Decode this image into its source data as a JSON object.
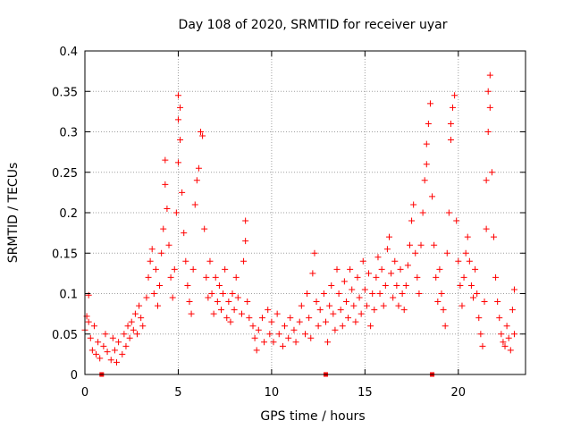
{
  "chart_data": {
    "type": "scatter",
    "title": "Day 108 of 2020, SRMTID for receiver uyar",
    "xlabel": "GPS time / hours",
    "ylabel": "SRMTID / TECUs",
    "xlim": [
      0,
      23.6
    ],
    "ylim": [
      0,
      0.4
    ],
    "x_ticks": [
      0,
      5,
      10,
      15,
      20
    ],
    "x_tick_labels": [
      "0",
      "5",
      "10",
      "15",
      "20"
    ],
    "y_ticks": [
      0,
      0.05,
      0.1,
      0.15,
      0.2,
      0.25,
      0.3,
      0.35,
      0.4
    ],
    "y_tick_labels": [
      "0",
      "0.05",
      "0.1",
      "0.15",
      "0.2",
      "0.25",
      "0.3",
      "0.35",
      "0.4"
    ],
    "grid": true,
    "legend": "none",
    "marker": "plus",
    "color": "#ff0000",
    "axis_markers_x": [
      0.9,
      12.9,
      18.6
    ],
    "series": [
      {
        "name": "SRMTID",
        "points": [
          [
            0.0,
            0.055
          ],
          [
            0.1,
            0.072
          ],
          [
            0.2,
            0.098
          ],
          [
            0.2,
            0.065
          ],
          [
            0.3,
            0.045
          ],
          [
            0.4,
            0.03
          ],
          [
            0.5,
            0.06
          ],
          [
            0.6,
            0.025
          ],
          [
            0.7,
            0.04
          ],
          [
            0.8,
            0.02
          ],
          [
            1.0,
            0.035
          ],
          [
            1.1,
            0.05
          ],
          [
            1.2,
            0.028
          ],
          [
            1.4,
            0.018
          ],
          [
            1.5,
            0.045
          ],
          [
            1.6,
            0.03
          ],
          [
            1.7,
            0.015
          ],
          [
            1.8,
            0.04
          ],
          [
            2.0,
            0.025
          ],
          [
            2.1,
            0.05
          ],
          [
            2.2,
            0.035
          ],
          [
            2.3,
            0.06
          ],
          [
            2.4,
            0.045
          ],
          [
            2.5,
            0.065
          ],
          [
            2.6,
            0.055
          ],
          [
            2.7,
            0.075
          ],
          [
            2.8,
            0.05
          ],
          [
            2.9,
            0.085
          ],
          [
            3.0,
            0.07
          ],
          [
            3.1,
            0.06
          ],
          [
            3.3,
            0.095
          ],
          [
            3.4,
            0.12
          ],
          [
            3.5,
            0.14
          ],
          [
            3.6,
            0.155
          ],
          [
            3.7,
            0.1
          ],
          [
            3.8,
            0.13
          ],
          [
            3.9,
            0.085
          ],
          [
            4.0,
            0.11
          ],
          [
            4.1,
            0.15
          ],
          [
            4.2,
            0.18
          ],
          [
            4.3,
            0.235
          ],
          [
            4.3,
            0.265
          ],
          [
            4.4,
            0.205
          ],
          [
            4.5,
            0.16
          ],
          [
            4.6,
            0.12
          ],
          [
            4.7,
            0.095
          ],
          [
            4.8,
            0.13
          ],
          [
            4.9,
            0.2
          ],
          [
            5.0,
            0.262
          ],
          [
            5.0,
            0.315
          ],
          [
            5.0,
            0.345
          ],
          [
            5.1,
            0.33
          ],
          [
            5.1,
            0.29
          ],
          [
            5.2,
            0.225
          ],
          [
            5.3,
            0.175
          ],
          [
            5.4,
            0.14
          ],
          [
            5.5,
            0.11
          ],
          [
            5.6,
            0.09
          ],
          [
            5.7,
            0.075
          ],
          [
            5.8,
            0.13
          ],
          [
            5.9,
            0.21
          ],
          [
            6.0,
            0.24
          ],
          [
            6.1,
            0.255
          ],
          [
            6.2,
            0.3
          ],
          [
            6.3,
            0.295
          ],
          [
            6.4,
            0.18
          ],
          [
            6.5,
            0.12
          ],
          [
            6.6,
            0.095
          ],
          [
            6.7,
            0.14
          ],
          [
            6.8,
            0.1
          ],
          [
            6.9,
            0.075
          ],
          [
            7.0,
            0.12
          ],
          [
            7.1,
            0.09
          ],
          [
            7.2,
            0.11
          ],
          [
            7.3,
            0.08
          ],
          [
            7.4,
            0.1
          ],
          [
            7.5,
            0.13
          ],
          [
            7.6,
            0.07
          ],
          [
            7.7,
            0.09
          ],
          [
            7.8,
            0.065
          ],
          [
            7.9,
            0.1
          ],
          [
            8.0,
            0.08
          ],
          [
            8.1,
            0.12
          ],
          [
            8.2,
            0.095
          ],
          [
            8.4,
            0.075
          ],
          [
            8.5,
            0.14
          ],
          [
            8.6,
            0.165
          ],
          [
            8.6,
            0.19
          ],
          [
            8.7,
            0.09
          ],
          [
            8.8,
            0.07
          ],
          [
            9.0,
            0.06
          ],
          [
            9.1,
            0.045
          ],
          [
            9.2,
            0.03
          ],
          [
            9.3,
            0.055
          ],
          [
            9.5,
            0.07
          ],
          [
            9.6,
            0.04
          ],
          [
            9.8,
            0.08
          ],
          [
            9.9,
            0.05
          ],
          [
            10.0,
            0.065
          ],
          [
            10.1,
            0.04
          ],
          [
            10.3,
            0.075
          ],
          [
            10.4,
            0.05
          ],
          [
            10.6,
            0.035
          ],
          [
            10.7,
            0.06
          ],
          [
            10.9,
            0.045
          ],
          [
            11.0,
            0.07
          ],
          [
            11.2,
            0.055
          ],
          [
            11.3,
            0.04
          ],
          [
            11.5,
            0.065
          ],
          [
            11.6,
            0.085
          ],
          [
            11.8,
            0.05
          ],
          [
            11.9,
            0.1
          ],
          [
            12.0,
            0.07
          ],
          [
            12.1,
            0.045
          ],
          [
            12.2,
            0.125
          ],
          [
            12.3,
            0.15
          ],
          [
            12.4,
            0.09
          ],
          [
            12.5,
            0.06
          ],
          [
            12.6,
            0.08
          ],
          [
            12.8,
            0.1
          ],
          [
            12.9,
            0.065
          ],
          [
            13.0,
            0.04
          ],
          [
            13.1,
            0.085
          ],
          [
            13.2,
            0.11
          ],
          [
            13.3,
            0.075
          ],
          [
            13.4,
            0.055
          ],
          [
            13.5,
            0.13
          ],
          [
            13.6,
            0.1
          ],
          [
            13.7,
            0.08
          ],
          [
            13.8,
            0.06
          ],
          [
            13.9,
            0.115
          ],
          [
            14.0,
            0.09
          ],
          [
            14.1,
            0.07
          ],
          [
            14.2,
            0.13
          ],
          [
            14.3,
            0.105
          ],
          [
            14.4,
            0.085
          ],
          [
            14.5,
            0.065
          ],
          [
            14.6,
            0.12
          ],
          [
            14.7,
            0.095
          ],
          [
            14.8,
            0.075
          ],
          [
            14.9,
            0.14
          ],
          [
            15.0,
            0.105
          ],
          [
            15.1,
            0.085
          ],
          [
            15.2,
            0.125
          ],
          [
            15.3,
            0.06
          ],
          [
            15.4,
            0.1
          ],
          [
            15.5,
            0.08
          ],
          [
            15.6,
            0.12
          ],
          [
            15.7,
            0.145
          ],
          [
            15.8,
            0.1
          ],
          [
            15.9,
            0.13
          ],
          [
            16.0,
            0.085
          ],
          [
            16.1,
            0.11
          ],
          [
            16.2,
            0.155
          ],
          [
            16.3,
            0.17
          ],
          [
            16.4,
            0.125
          ],
          [
            16.5,
            0.095
          ],
          [
            16.6,
            0.14
          ],
          [
            16.7,
            0.11
          ],
          [
            16.8,
            0.085
          ],
          [
            16.9,
            0.13
          ],
          [
            17.0,
            0.1
          ],
          [
            17.1,
            0.08
          ],
          [
            17.2,
            0.11
          ],
          [
            17.3,
            0.135
          ],
          [
            17.4,
            0.16
          ],
          [
            17.5,
            0.19
          ],
          [
            17.6,
            0.21
          ],
          [
            17.7,
            0.15
          ],
          [
            17.8,
            0.12
          ],
          [
            17.9,
            0.1
          ],
          [
            18.0,
            0.16
          ],
          [
            18.1,
            0.2
          ],
          [
            18.2,
            0.24
          ],
          [
            18.3,
            0.26
          ],
          [
            18.3,
            0.285
          ],
          [
            18.4,
            0.31
          ],
          [
            18.5,
            0.335
          ],
          [
            18.6,
            0.22
          ],
          [
            18.7,
            0.16
          ],
          [
            18.8,
            0.12
          ],
          [
            18.9,
            0.09
          ],
          [
            19.0,
            0.13
          ],
          [
            19.1,
            0.1
          ],
          [
            19.2,
            0.08
          ],
          [
            19.3,
            0.06
          ],
          [
            19.4,
            0.15
          ],
          [
            19.5,
            0.2
          ],
          [
            19.6,
            0.29
          ],
          [
            19.6,
            0.31
          ],
          [
            19.7,
            0.33
          ],
          [
            19.8,
            0.345
          ],
          [
            19.9,
            0.19
          ],
          [
            20.0,
            0.14
          ],
          [
            20.1,
            0.11
          ],
          [
            20.2,
            0.085
          ],
          [
            20.3,
            0.12
          ],
          [
            20.4,
            0.15
          ],
          [
            20.5,
            0.17
          ],
          [
            20.6,
            0.14
          ],
          [
            20.7,
            0.11
          ],
          [
            20.8,
            0.095
          ],
          [
            20.9,
            0.13
          ],
          [
            21.0,
            0.1
          ],
          [
            21.1,
            0.07
          ],
          [
            21.2,
            0.05
          ],
          [
            21.3,
            0.035
          ],
          [
            21.4,
            0.09
          ],
          [
            21.5,
            0.18
          ],
          [
            21.5,
            0.24
          ],
          [
            21.6,
            0.3
          ],
          [
            21.6,
            0.35
          ],
          [
            21.7,
            0.37
          ],
          [
            21.7,
            0.33
          ],
          [
            21.8,
            0.25
          ],
          [
            21.9,
            0.17
          ],
          [
            22.0,
            0.12
          ],
          [
            22.1,
            0.09
          ],
          [
            22.2,
            0.07
          ],
          [
            22.3,
            0.05
          ],
          [
            22.4,
            0.04
          ],
          [
            22.5,
            0.035
          ],
          [
            22.6,
            0.06
          ],
          [
            22.7,
            0.045
          ],
          [
            22.8,
            0.03
          ],
          [
            22.9,
            0.08
          ],
          [
            23.0,
            0.105
          ],
          [
            23.0,
            0.05
          ]
        ]
      }
    ]
  }
}
